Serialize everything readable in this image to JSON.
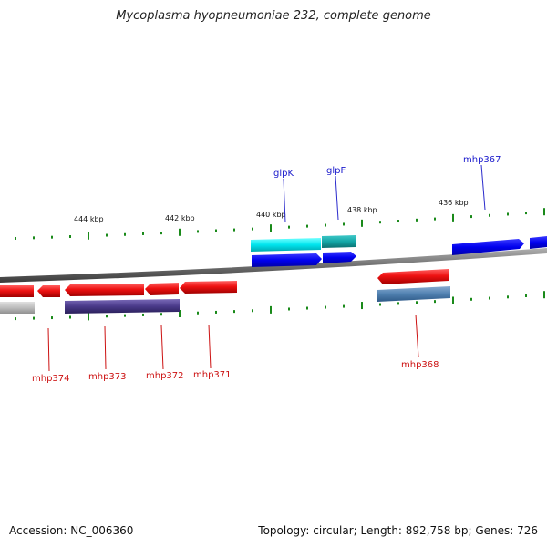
{
  "title": "Mycoplasma hyopneumoniae 232, complete genome",
  "footer": {
    "accession": "Accession: NC_006360",
    "summary": "Topology: circular; Length: 892,758 bp; Genes: 726"
  },
  "colors": {
    "backbone": "#7a7a7a",
    "tick": "#1a8a1a",
    "kbp_text": "#111111",
    "forward_gene": "#0000ee",
    "forward_label": "#1a1acc",
    "reverse_gene": "#ee1111",
    "reverse_label": "#cc1111",
    "cyan_cds": "#00e5ee",
    "teal_cds": "#13a6a6",
    "steel_cds": "#4f80b0",
    "purple_cds": "#4a3a8a",
    "gray_cds": "#bdbdbd"
  },
  "kbp_labels": [
    {
      "text": "444 kbp"
    },
    {
      "text": "442 kbp"
    },
    {
      "text": "440 kbp"
    },
    {
      "text": "438 kbp"
    },
    {
      "text": "436 kbp"
    }
  ],
  "gene_labels": [
    {
      "name": "glpK",
      "strand": "forward"
    },
    {
      "name": "glpF",
      "strand": "forward"
    },
    {
      "name": "mhp367",
      "strand": "forward"
    },
    {
      "name": "mhp374",
      "strand": "reverse"
    },
    {
      "name": "mhp373",
      "strand": "reverse"
    },
    {
      "name": "mhp372",
      "strand": "reverse"
    },
    {
      "name": "mhp371",
      "strand": "reverse"
    },
    {
      "name": "mhp368",
      "strand": "reverse"
    }
  ]
}
